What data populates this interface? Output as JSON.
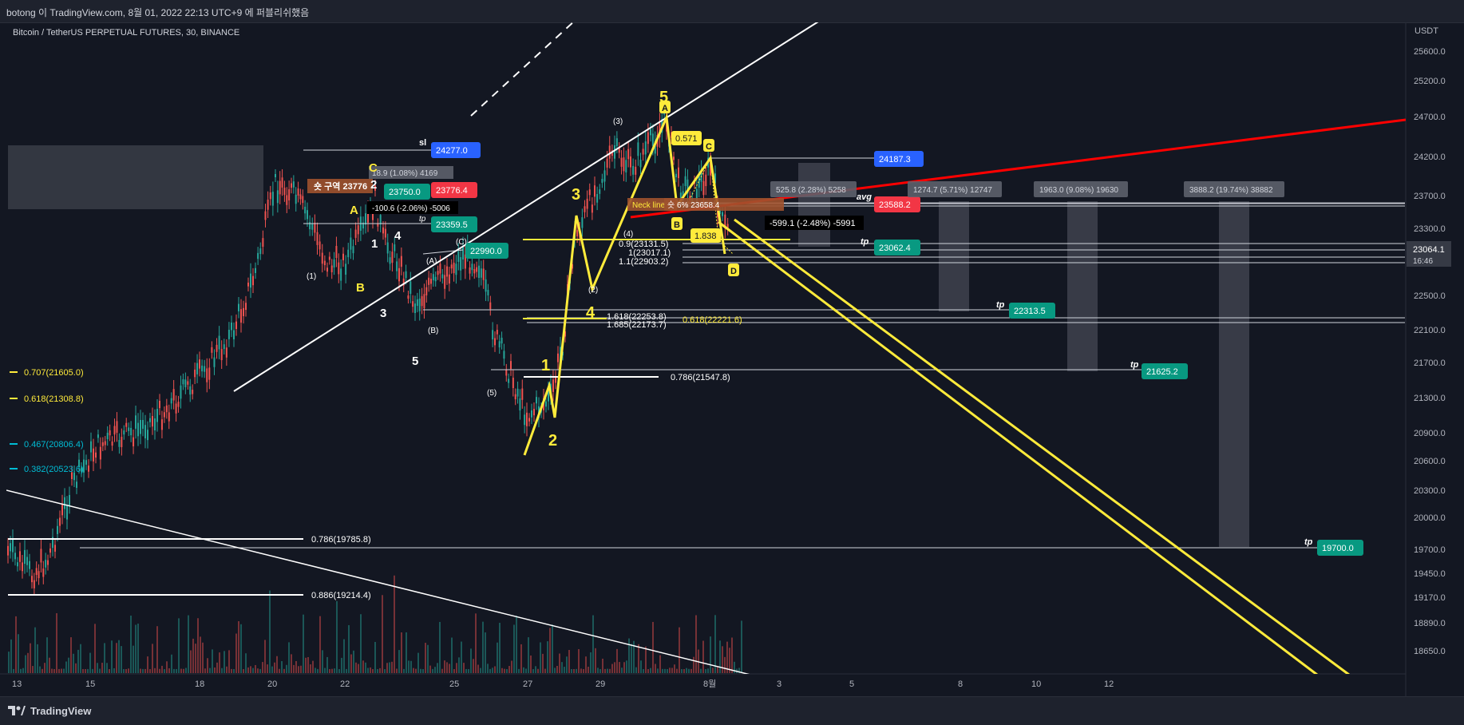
{
  "header": {
    "publish_line": "botong 이 TradingView.com, 8월 01, 2022 22:13 UTC+9 에 퍼블리쉬했음"
  },
  "symbol": {
    "title": "Bitcoin / TetherUS PERPETUAL FUTURES, 30, BINANCE"
  },
  "footer": {
    "brand": "TradingView"
  },
  "colors": {
    "bg": "#131722",
    "up": "#26a69a",
    "down": "#ef5350",
    "yellow": "#ffeb3b",
    "red": "#ff0000",
    "blue_tag": "#2962ff",
    "teal_tag": "#089981",
    "red_tag": "#f23645",
    "gray": "#9598a1"
  },
  "chart_data": {
    "type": "line",
    "unit_label": "USDT",
    "y_ticks": [
      "25600.0",
      "25200.0",
      "24700.0",
      "24200.0",
      "23700.0",
      "23300.0",
      "22500.0",
      "22100.0",
      "21700.0",
      "21300.0",
      "20900.0",
      "20600.0",
      "20300.0",
      "20000.0",
      "19700.0",
      "19450.0",
      "19170.0",
      "18890.0",
      "18650.0"
    ],
    "x_ticks": [
      "13",
      "15",
      "18",
      "20",
      "22",
      "25",
      "27",
      "29",
      "8월",
      "3",
      "5",
      "8",
      "10",
      "12"
    ],
    "current_price": {
      "value": "23064.1",
      "countdown": "16:46"
    },
    "price_tags": [
      {
        "label": "24277.0",
        "color": "#2962ff"
      },
      {
        "label": "23776.4",
        "color": "#f23645"
      },
      {
        "label": "23750.0",
        "color": "#089981"
      },
      {
        "label": "23359.5",
        "color": "#089981"
      },
      {
        "label": "22990.0",
        "color": "#089981"
      },
      {
        "label": "24187.3",
        "color": "#2962ff"
      },
      {
        "label": "23588.2",
        "color": "#f23645"
      },
      {
        "label": "23062.4",
        "color": "#089981"
      },
      {
        "label": "22313.5",
        "color": "#089981"
      },
      {
        "label": "21625.2",
        "color": "#089981"
      },
      {
        "label": "19700.0",
        "color": "#089981"
      }
    ],
    "fib_left": [
      "0.707(21605.0)",
      "0.618(21308.8)",
      "0.467(20806.4)",
      "0.382(20523.6)"
    ],
    "fib_lines": [
      "0.786(19785.8)",
      "0.886(19214.4)",
      "0.786(21547.8)",
      "0.9(23131.5)",
      "1(23017.1)",
      "1.1(22903.2)",
      "1.618(22253.8)",
      "1.685(22173.7)",
      "0.618(22221.6)"
    ],
    "measure_boxes": [
      "525.8 (2.28%) 5258",
      "1274.7 (5.71%) 12747",
      "1963.0 (9.08%) 19630",
      "3888.2 (19.74%) 38882"
    ],
    "misc_labels": [
      "숏 구역 23776",
      "-599.1 (-2.48%) -5991",
      "-100.6 (-2.06%) -5006",
      "18.9 (1.08%) 4169",
      "Neck line",
      "숏 6% 23658.4",
      "avg",
      "sl",
      "tp",
      "tp",
      "tp",
      "tp",
      "tp",
      "0.571",
      "1.838"
    ],
    "wave_labels_yellow": [
      "1",
      "2",
      "3",
      "4",
      "5",
      "A",
      "B",
      "C",
      "D",
      "A",
      "B",
      "C"
    ],
    "wave_labels_white": [
      "(1)",
      "(2)",
      "(3)",
      "(4)",
      "(5)",
      "(A)",
      "(B)",
      "(C)",
      "1",
      "2",
      "3",
      "4",
      "5"
    ]
  }
}
